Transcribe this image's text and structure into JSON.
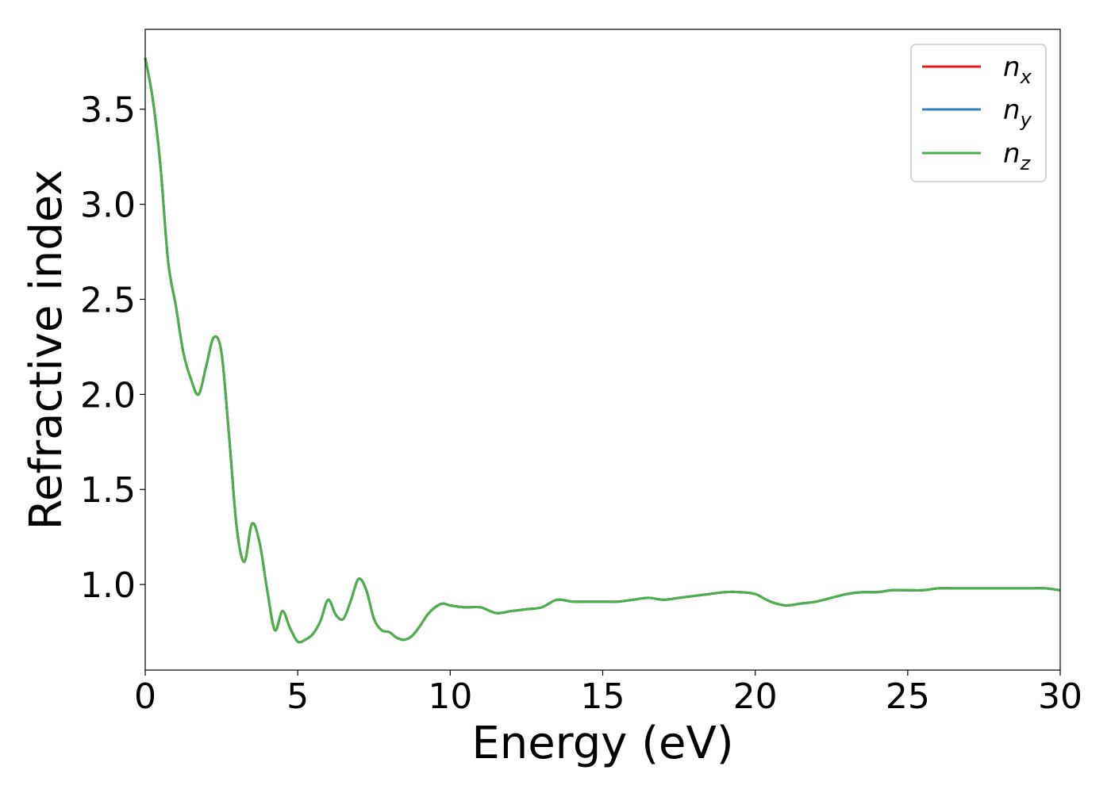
{
  "chart_data": {
    "type": "line",
    "title": "",
    "xlabel": "Energy (eV)",
    "ylabel": "Refractive index",
    "xlim": [
      0,
      30
    ],
    "ylim": [
      0.55,
      3.92
    ],
    "x_ticks": [
      0,
      5,
      10,
      15,
      20,
      25,
      30
    ],
    "y_ticks": [
      1.0,
      1.5,
      2.0,
      2.5,
      3.0,
      3.5
    ],
    "x_tick_labels": [
      "0",
      "5",
      "10",
      "15",
      "20",
      "25",
      "30"
    ],
    "y_tick_labels": [
      "1.0",
      "1.5",
      "2.0",
      "2.5",
      "3.0",
      "3.5"
    ],
    "grid": false,
    "legend_position": "top-right",
    "x": [
      0,
      0.25,
      0.5,
      0.75,
      1.0,
      1.25,
      1.5,
      1.75,
      2.0,
      2.25,
      2.5,
      2.75,
      3.0,
      3.25,
      3.5,
      3.75,
      4.0,
      4.25,
      4.5,
      4.75,
      5.0,
      5.25,
      5.5,
      5.75,
      6.0,
      6.25,
      6.5,
      6.75,
      7.0,
      7.25,
      7.5,
      7.75,
      8.0,
      8.25,
      8.5,
      8.75,
      9.0,
      9.25,
      9.5,
      9.75,
      10.0,
      10.5,
      11.0,
      11.5,
      12.0,
      12.5,
      13.0,
      13.5,
      14.0,
      14.5,
      15.0,
      15.5,
      16.0,
      16.5,
      17.0,
      17.5,
      18.0,
      18.5,
      19.0,
      19.5,
      20.0,
      20.5,
      21.0,
      21.5,
      22.0,
      22.5,
      23.0,
      23.5,
      24.0,
      24.5,
      25.0,
      25.5,
      26.0,
      26.5,
      27.0,
      27.5,
      28.0,
      28.5,
      29.0,
      29.5,
      30.0
    ],
    "series": [
      {
        "name": "n_x",
        "label_main": "n",
        "label_sub": "x",
        "color": "#e41a1c",
        "values": [
          3.77,
          3.55,
          3.2,
          2.7,
          2.47,
          2.22,
          2.08,
          2.0,
          2.15,
          2.3,
          2.22,
          1.78,
          1.3,
          1.12,
          1.32,
          1.22,
          0.97,
          0.76,
          0.86,
          0.77,
          0.7,
          0.71,
          0.74,
          0.81,
          0.92,
          0.84,
          0.82,
          0.92,
          1.03,
          0.97,
          0.82,
          0.76,
          0.75,
          0.72,
          0.71,
          0.73,
          0.78,
          0.84,
          0.88,
          0.9,
          0.89,
          0.88,
          0.88,
          0.85,
          0.86,
          0.87,
          0.88,
          0.92,
          0.91,
          0.91,
          0.91,
          0.91,
          0.92,
          0.93,
          0.92,
          0.93,
          0.94,
          0.95,
          0.96,
          0.96,
          0.95,
          0.91,
          0.89,
          0.9,
          0.91,
          0.93,
          0.95,
          0.96,
          0.96,
          0.97,
          0.97,
          0.97,
          0.98,
          0.98,
          0.98,
          0.98,
          0.98,
          0.98,
          0.98,
          0.98,
          0.97
        ]
      },
      {
        "name": "n_y",
        "label_main": "n",
        "label_sub": "y",
        "color": "#377eb8",
        "values": [
          3.77,
          3.55,
          3.2,
          2.7,
          2.47,
          2.22,
          2.08,
          2.0,
          2.15,
          2.3,
          2.22,
          1.78,
          1.3,
          1.12,
          1.32,
          1.22,
          0.97,
          0.76,
          0.86,
          0.77,
          0.7,
          0.71,
          0.74,
          0.81,
          0.92,
          0.84,
          0.82,
          0.92,
          1.03,
          0.97,
          0.82,
          0.76,
          0.75,
          0.72,
          0.71,
          0.73,
          0.78,
          0.84,
          0.88,
          0.9,
          0.89,
          0.88,
          0.88,
          0.85,
          0.86,
          0.87,
          0.88,
          0.92,
          0.91,
          0.91,
          0.91,
          0.91,
          0.92,
          0.93,
          0.92,
          0.93,
          0.94,
          0.95,
          0.96,
          0.96,
          0.95,
          0.91,
          0.89,
          0.9,
          0.91,
          0.93,
          0.95,
          0.96,
          0.96,
          0.97,
          0.97,
          0.97,
          0.98,
          0.98,
          0.98,
          0.98,
          0.98,
          0.98,
          0.98,
          0.98,
          0.97
        ]
      },
      {
        "name": "n_z",
        "label_main": "n",
        "label_sub": "z",
        "color": "#4daf4a",
        "values": [
          3.77,
          3.55,
          3.2,
          2.7,
          2.47,
          2.22,
          2.08,
          2.0,
          2.15,
          2.3,
          2.22,
          1.78,
          1.3,
          1.12,
          1.32,
          1.22,
          0.97,
          0.76,
          0.86,
          0.77,
          0.7,
          0.71,
          0.74,
          0.81,
          0.92,
          0.84,
          0.82,
          0.92,
          1.03,
          0.97,
          0.82,
          0.76,
          0.75,
          0.72,
          0.71,
          0.73,
          0.78,
          0.84,
          0.88,
          0.9,
          0.89,
          0.88,
          0.88,
          0.85,
          0.86,
          0.87,
          0.88,
          0.92,
          0.91,
          0.91,
          0.91,
          0.91,
          0.92,
          0.93,
          0.92,
          0.93,
          0.94,
          0.95,
          0.96,
          0.96,
          0.95,
          0.91,
          0.89,
          0.9,
          0.91,
          0.93,
          0.95,
          0.96,
          0.96,
          0.97,
          0.97,
          0.97,
          0.98,
          0.98,
          0.98,
          0.98,
          0.98,
          0.98,
          0.98,
          0.98,
          0.97
        ]
      }
    ]
  }
}
